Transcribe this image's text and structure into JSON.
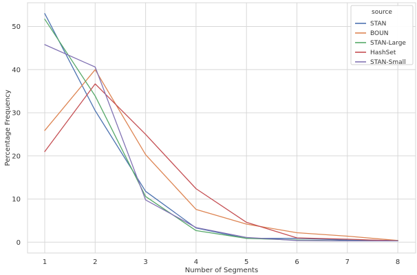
{
  "chart_data": {
    "type": "line",
    "x": [
      "1",
      "2",
      "3",
      "4",
      "5",
      "6",
      "7",
      "8"
    ],
    "xlabel": "Number of Segments",
    "ylabel": "Percentage Frequency",
    "ylim": [
      -2.5,
      55.5
    ],
    "yticks": [
      0,
      10,
      20,
      30,
      40,
      50
    ],
    "grid": true,
    "legend_title": "source",
    "legend_position": "top-right",
    "series": [
      {
        "name": "STAN",
        "color": "#4c72b0",
        "values": [
          53.0,
          30.5,
          11.8,
          3.3,
          0.9,
          0.9,
          0.5,
          0.4
        ]
      },
      {
        "name": "BOUN",
        "color": "#dd8452",
        "values": [
          25.9,
          40.0,
          20.3,
          7.6,
          4.2,
          2.2,
          1.4,
          0.4
        ]
      },
      {
        "name": "STAN-Large",
        "color": "#55a868",
        "values": [
          51.7,
          33.9,
          10.6,
          2.7,
          0.9,
          0.5,
          0.3,
          0.3
        ]
      },
      {
        "name": "HashSet",
        "color": "#c44e52",
        "values": [
          21.0,
          36.7,
          25.0,
          12.4,
          4.6,
          1.0,
          0.7,
          0.3
        ]
      },
      {
        "name": "STAN-Small",
        "color": "#8172b3",
        "values": [
          45.8,
          40.6,
          9.8,
          3.4,
          1.1,
          0.4,
          0.3,
          0.3
        ]
      }
    ]
  }
}
